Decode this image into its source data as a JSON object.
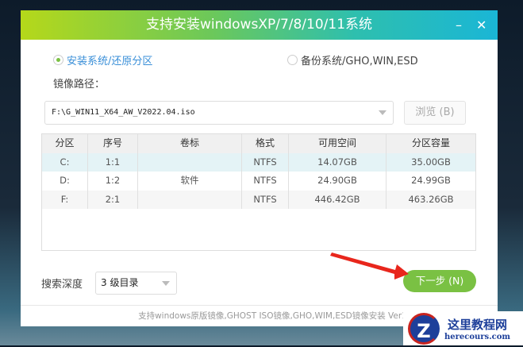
{
  "window": {
    "title": "支持安装windowsXP/7/8/10/11系统",
    "minimize": "–",
    "close": "✕"
  },
  "mode": {
    "install_label": "安装系统/还原分区",
    "backup_label": "备份系统/GHO,WIN,ESD",
    "selected": "install"
  },
  "image_path": {
    "label": "镜像路径：",
    "value": "F:\\G_WIN11_X64_AW_V2022.04.iso",
    "browse": "浏览 (B)"
  },
  "table": {
    "headers": [
      "分区",
      "序号",
      "卷标",
      "格式",
      "可用空间",
      "分区容量"
    ],
    "rows": [
      [
        "C:",
        "1:1",
        "",
        "NTFS",
        "14.07GB",
        "35.00GB"
      ],
      [
        "D:",
        "1:2",
        "软件",
        "NTFS",
        "24.90GB",
        "24.99GB"
      ],
      [
        "F:",
        "2:1",
        "",
        "NTFS",
        "446.42GB",
        "463.26GB"
      ]
    ]
  },
  "search_depth": {
    "label": "搜索深度",
    "value": "3 级目录"
  },
  "next_button": "下一步 (N)",
  "footer": "支持windows原版镜像,GHOST ISO镜像,GHO,WIM,ESD镜像安装 Ver1.0",
  "watermark": {
    "title": "这里教程网",
    "url": "herecours.com",
    "logo_letter": "Z"
  },
  "colors": {
    "accent": "#7ac143",
    "arrow": "#e8261c"
  }
}
